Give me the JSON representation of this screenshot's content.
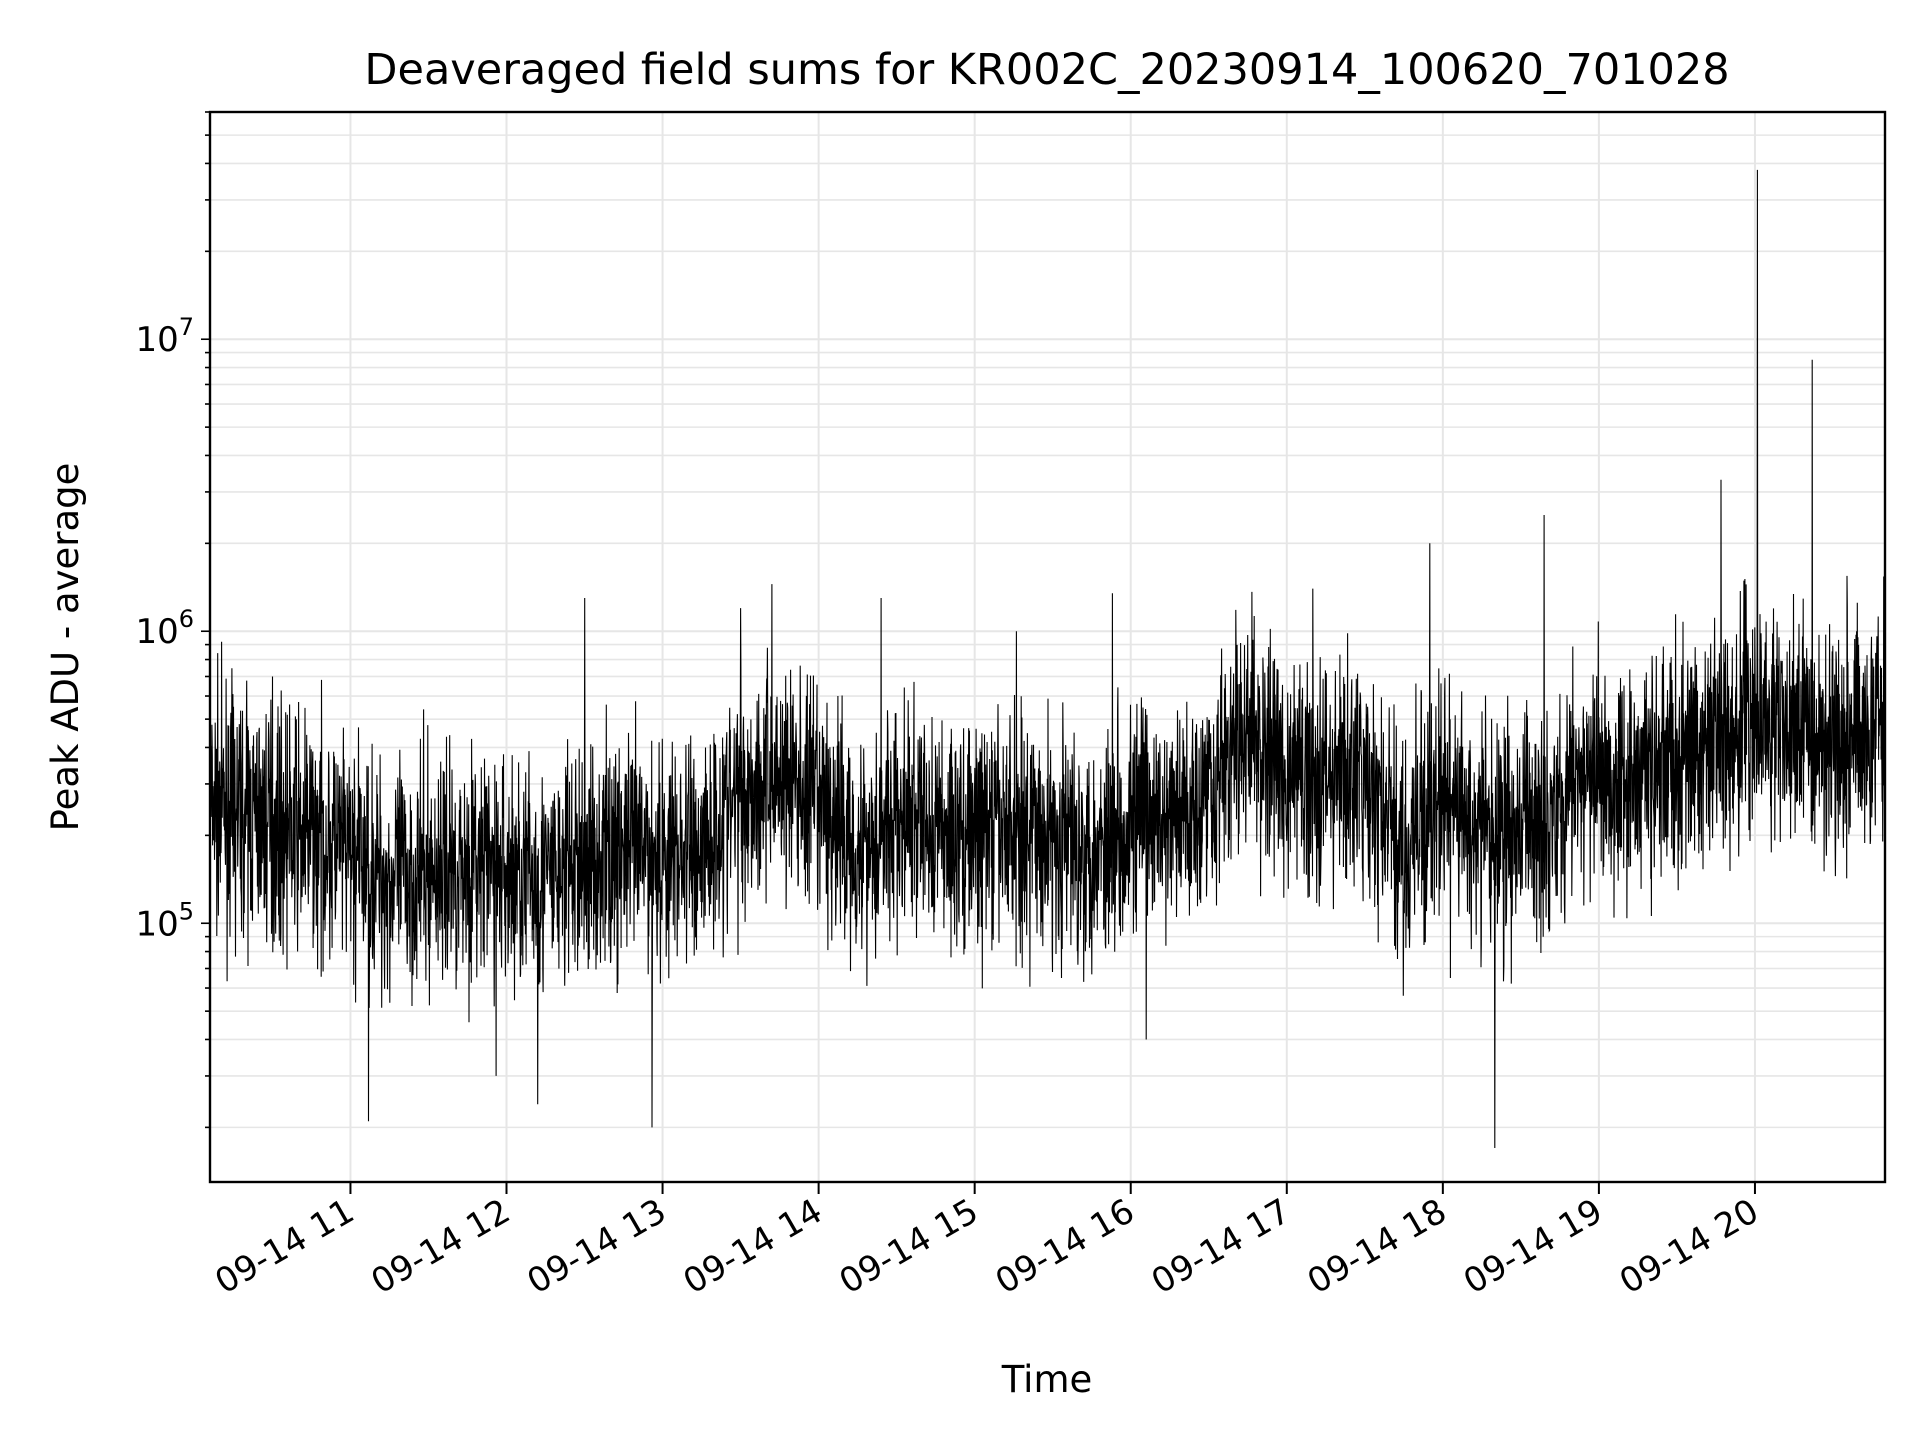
{
  "chart_data": {
    "type": "line",
    "title": "Deaveraged field sums for KR002C_20230914_100620_701028",
    "xlabel": "Time",
    "ylabel": "Peak ADU - average",
    "x_range": [
      "09-14 10:06",
      "09-14 20:50"
    ],
    "y_scale": "log",
    "ylim": [
      13000,
      60000000
    ],
    "grid": true,
    "line_color": "#000000",
    "x_ticks": [
      "09-14 11",
      "09-14 12",
      "09-14 13",
      "09-14 14",
      "09-14 15",
      "09-14 16",
      "09-14 17",
      "09-14 18",
      "09-14 19",
      "09-14 20"
    ],
    "y_ticks": [
      {
        "base": "10",
        "exp": "5",
        "value": 100000
      },
      {
        "base": "10",
        "exp": "6",
        "value": 1000000
      },
      {
        "base": "10",
        "exp": "7",
        "value": 10000000
      }
    ],
    "series": [
      {
        "x": [
          "09-14 10:06",
          "09-14 10:15",
          "09-14 10:30",
          "09-14 10:45",
          "09-14 11:00",
          "09-14 11:15",
          "09-14 11:30",
          "09-14 11:45",
          "09-14 12:00",
          "09-14 12:15",
          "09-14 12:30",
          "09-14 12:45",
          "09-14 13:00",
          "09-14 13:15",
          "09-14 13:30",
          "09-14 13:45",
          "09-14 14:00",
          "09-14 14:15",
          "09-14 14:30",
          "09-14 14:45",
          "09-14 15:00",
          "09-14 15:15",
          "09-14 15:30",
          "09-14 15:45",
          "09-14 16:00",
          "09-14 16:15",
          "09-14 16:30",
          "09-14 16:45",
          "09-14 17:00",
          "09-14 17:15",
          "09-14 17:30",
          "09-14 17:45",
          "09-14 18:00",
          "09-14 18:15",
          "09-14 18:30",
          "09-14 18:45",
          "09-14 19:00",
          "09-14 19:15",
          "09-14 19:30",
          "09-14 19:45",
          "09-14 20:00",
          "09-14 20:15",
          "09-14 20:30",
          "09-14 20:50"
        ],
        "y": [
          250000,
          240000,
          220000,
          200000,
          170000,
          140000,
          150000,
          160000,
          150000,
          140000,
          160000,
          180000,
          170000,
          180000,
          280000,
          330000,
          250000,
          180000,
          220000,
          210000,
          200000,
          210000,
          200000,
          180000,
          230000,
          210000,
          300000,
          450000,
          320000,
          330000,
          300000,
          170000,
          260000,
          200000,
          210000,
          270000,
          320000,
          330000,
          350000,
          410000,
          520000,
          450000,
          450000,
          500000
        ],
        "spikes": [
          {
            "x": "09-14 10:30",
            "y": 700000
          },
          {
            "x": "09-14 11:07",
            "y": 21000
          },
          {
            "x": "09-14 11:56",
            "y": 30000
          },
          {
            "x": "09-14 12:12",
            "y": 24000
          },
          {
            "x": "09-14 12:30",
            "y": 1300000
          },
          {
            "x": "09-14 12:56",
            "y": 20000
          },
          {
            "x": "09-14 13:30",
            "y": 1200000
          },
          {
            "x": "09-14 13:42",
            "y": 1450000
          },
          {
            "x": "09-14 14:24",
            "y": 1300000
          },
          {
            "x": "09-14 15:16",
            "y": 1000000
          },
          {
            "x": "09-14 16:06",
            "y": 40000
          },
          {
            "x": "09-14 15:53",
            "y": 1350000
          },
          {
            "x": "09-14 17:10",
            "y": 1400000
          },
          {
            "x": "09-14 17:55",
            "y": 2000000
          },
          {
            "x": "09-14 18:20",
            "y": 17000
          },
          {
            "x": "09-14 18:39",
            "y": 2500000
          },
          {
            "x": "09-14 19:47",
            "y": 3300000
          },
          {
            "x": "09-14 20:01",
            "y": 38000000
          },
          {
            "x": "09-14 20:22",
            "y": 8500000
          }
        ]
      }
    ]
  }
}
